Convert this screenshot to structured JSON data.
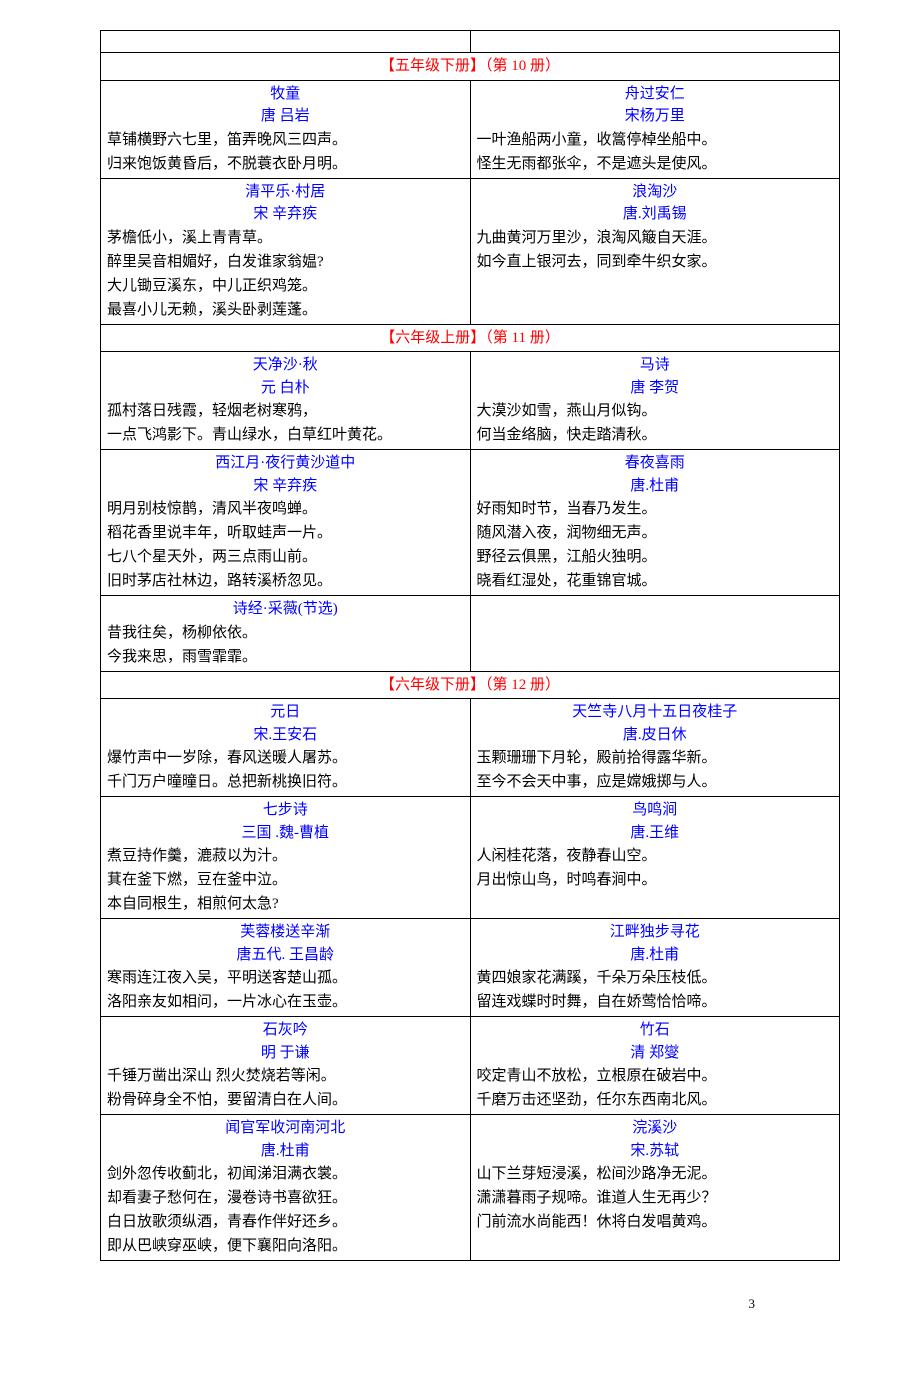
{
  "colors": {
    "header_text": "#ff0000",
    "title_author_text": "#0000ff",
    "body_text": "#000000",
    "border": "#000000",
    "background": "#ffffff"
  },
  "typography": {
    "font_family": "SimSun",
    "font_size_pt": 11,
    "line_height": 1.5
  },
  "page_number": "3",
  "sections": [
    {
      "header": "【五年级下册】（第 10 册）",
      "rows": [
        {
          "left": {
            "title": "牧童",
            "author": "唐 吕岩",
            "lines": [
              "草铺横野六七里，笛弄晚风三四声。",
              "归来饱饭黄昏后，不脱蓑衣卧月明。"
            ]
          },
          "right": {
            "title": "舟过安仁",
            "author": "宋杨万里",
            "lines": [
              "一叶渔船两小童，收篙停棹坐船中。",
              "怪生无雨都张伞，不是遮头是使风。"
            ]
          }
        },
        {
          "left": {
            "title": "清平乐·村居",
            "author": "宋 辛弃疾",
            "lines": [
              "茅檐低小，溪上青青草。",
              "醉里吴音相媚好，白发谁家翁媪?",
              "大儿锄豆溪东，中儿正织鸡笼。",
              "最喜小儿无赖，溪头卧剥莲蓬。"
            ]
          },
          "right": {
            "title": "浪淘沙",
            "author": "唐.刘禹锡",
            "lines": [
              "九曲黄河万里沙，浪淘风簸自天涯。",
              "如今直上银河去，同到牵牛织女家。"
            ]
          }
        }
      ]
    },
    {
      "header": "【六年级上册】（第 11 册）",
      "rows": [
        {
          "left": {
            "title": "天净沙·秋",
            "author": "元 白朴",
            "lines": [
              "孤村落日残霞，轻烟老树寒鸦，",
              "一点飞鸿影下。青山绿水，白草红叶黄花。"
            ]
          },
          "right": {
            "title": "马诗",
            "author": "唐 李贺",
            "lines": [
              "大漠沙如雪，燕山月似钩。",
              "何当金络脑，快走踏清秋。"
            ]
          }
        },
        {
          "left": {
            "title": "西江月·夜行黄沙道中",
            "author": "宋 辛弃疾",
            "lines": [
              "明月别枝惊鹊，清风半夜鸣蝉。",
              "稻花香里说丰年，听取蛙声一片。",
              "七八个星天外，两三点雨山前。",
              "旧时茅店社林边，路转溪桥忽见。"
            ]
          },
          "right": {
            "title": "春夜喜雨",
            "author": "唐.杜甫",
            "lines": [
              "好雨知时节，当春乃发生。",
              "随风潜入夜，润物细无声。",
              "野径云俱黑，江船火独明。",
              "晓看红湿处，花重锦官城。"
            ]
          }
        },
        {
          "left": {
            "title": "诗经·采薇(节选)",
            "author": "",
            "lines": [
              "昔我往矣，杨柳依依。",
              "今我来思，雨雪霏霏。"
            ]
          },
          "right": {
            "title": "",
            "author": "",
            "lines": []
          }
        }
      ]
    },
    {
      "header": "【六年级下册】（第 12 册）",
      "rows": [
        {
          "left": {
            "title": "元日",
            "author": "宋.王安石",
            "lines": [
              "爆竹声中一岁除，春风送暖人屠苏。",
              "千门万户曈曈日。总把新桃换旧符。"
            ]
          },
          "right": {
            "title": "天竺寺八月十五日夜桂子",
            "author": "唐.皮日休",
            "lines": [
              "玉颗珊珊下月轮，殿前拾得露华新。",
              "至今不会天中事，应是嫦娥掷与人。"
            ]
          }
        },
        {
          "left": {
            "title": "七步诗",
            "author": "三国 .魏-曹植",
            "lines": [
              "煮豆持作羹，漉菽以为汁。",
              "萁在釜下燃，豆在釜中泣。",
              "本自同根生，相煎何太急?"
            ]
          },
          "right": {
            "title": "鸟鸣涧",
            "author": "唐.王维",
            "lines": [
              "人闲桂花落，夜静春山空。",
              "月出惊山鸟，时鸣春涧中。"
            ]
          }
        },
        {
          "left": {
            "title": "芙蓉楼送辛渐",
            "author": "唐五代. 王昌龄",
            "lines": [
              "寒雨连江夜入吴，平明送客楚山孤。",
              "洛阳亲友如相问，一片冰心在玉壶。"
            ]
          },
          "right": {
            "title": "江畔独步寻花",
            "author": "唐.杜甫",
            "lines": [
              "黄四娘家花满蹊，千朵万朵压枝低。",
              "留连戏蝶时时舞，自在娇莺恰恰啼。"
            ]
          }
        },
        {
          "left": {
            "title": "石灰吟",
            "author": "明 于谦",
            "lines": [
              "千锤万凿出深山 烈火焚烧若等闲。",
              "粉骨碎身全不怕，要留清白在人间。"
            ]
          },
          "right": {
            "title": "竹石",
            "author": "清 郑燮",
            "lines": [
              "咬定青山不放松，立根原在破岩中。",
              "千磨万击还坚劲，任尔东西南北风。"
            ]
          }
        },
        {
          "left": {
            "title": "闻官军收河南河北",
            "author": "唐.杜甫",
            "lines": [
              "剑外忽传收蓟北，初闻涕泪满衣裳。",
              "却看妻子愁何在，漫卷诗书喜欲狂。",
              "白日放歌须纵酒，青春作伴好还乡。",
              "即从巴峡穿巫峡，便下襄阳向洛阳。"
            ]
          },
          "right": {
            "title": "浣溪沙",
            "author": "宋.苏轼",
            "lines": [
              "山下兰芽短浸溪，松间沙路净无泥。",
              "潇潇暮雨子规啼。谁道人生无再少？",
              "门前流水尚能西！休将白发唱黄鸡。"
            ]
          }
        }
      ]
    }
  ]
}
